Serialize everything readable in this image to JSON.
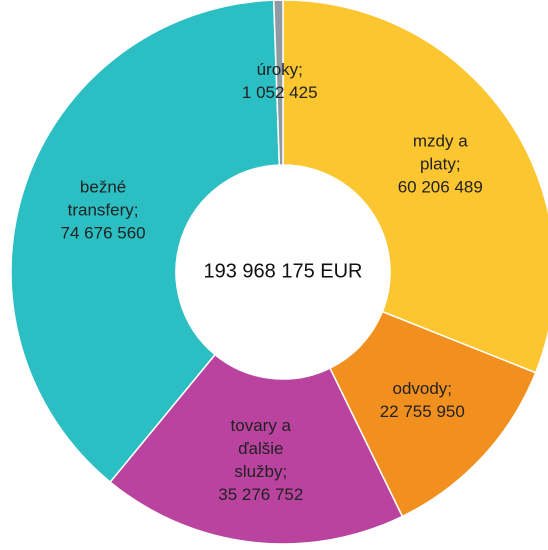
{
  "chart_data": {
    "type": "donut",
    "center_label": "193 968 175 EUR",
    "categories": [
      "mzdy a platy;",
      "odvody;",
      "tovary a ďalšie služby;",
      "bežné transfery;",
      "úroky;"
    ],
    "values": [
      60206489,
      22755950,
      35276752,
      74676560,
      1052425
    ],
    "value_labels": [
      "60 206 489",
      "22 755 950",
      "35 276 752",
      "74 676 560",
      "1 052 425"
    ],
    "colors": [
      "#fcc631",
      "#f2901f",
      "#b9439f",
      "#2bbfc4",
      "#8f9ba3"
    ]
  }
}
